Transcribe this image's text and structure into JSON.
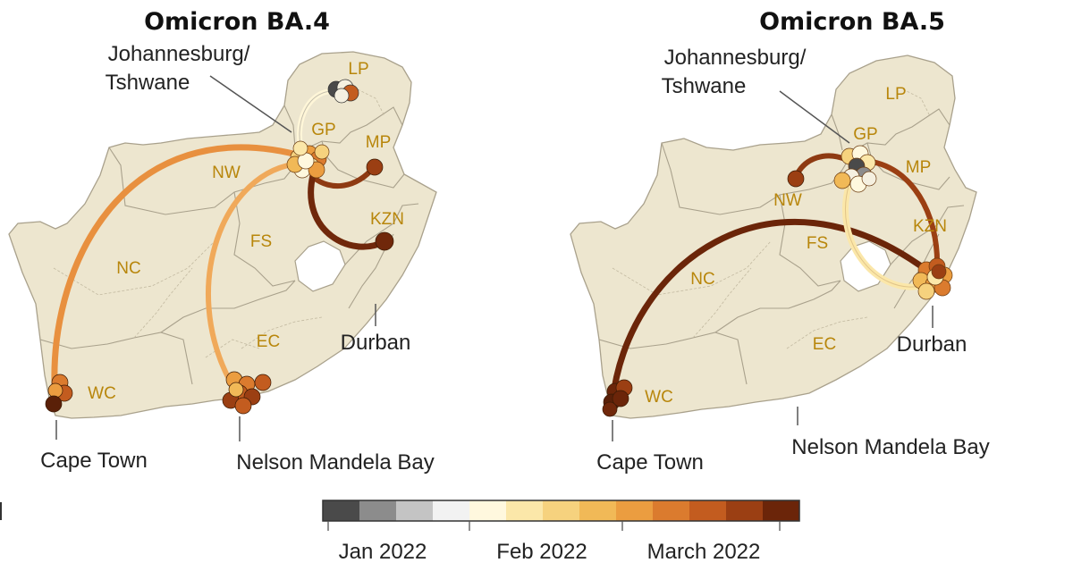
{
  "panels": [
    {
      "title": "Omicron BA.4",
      "provinces": {
        "lp": "LP",
        "gp": "GP",
        "mp": "MP",
        "nw": "NW",
        "kzn": "KZN",
        "fs": "FS",
        "nc": "NC",
        "ec": "EC",
        "wc": "WC"
      },
      "cities": {
        "jhb_line1": "Johannesburg/",
        "jhb_line2": "Tshwane",
        "durban": "Durban",
        "cape_town": "Cape Town",
        "nmb": "Nelson Mandela Bay"
      }
    },
    {
      "title": "Omicron BA.5",
      "provinces": {
        "lp": "LP",
        "gp": "GP",
        "mp": "MP",
        "nw": "NW",
        "kzn": "KZN",
        "fs": "FS",
        "nc": "NC",
        "ec": "EC",
        "wc": "WC"
      },
      "cities": {
        "jhb_line1": "Johannesburg/",
        "jhb_line2": "Tshwane",
        "durban": "Durban",
        "cape_town": "Cape Town",
        "nmb": "Nelson Mandela Bay"
      }
    }
  ],
  "legend": {
    "tick_labels": [
      "Jan 2022",
      "Feb 2022",
      "March 2022"
    ],
    "colors": [
      "#4a4a4a",
      "#8c8c8c",
      "#c4c4c4",
      "#f2f2f2",
      "#fff8de",
      "#fbe7a9",
      "#f6d27e",
      "#f1b957",
      "#eb9d40",
      "#db7b2e",
      "#c35c1f",
      "#9b3f13",
      "#6b2509"
    ]
  },
  "colors": {
    "land": "#ede6cf",
    "border": "#a9a18c",
    "province_label": "#b8860b"
  }
}
